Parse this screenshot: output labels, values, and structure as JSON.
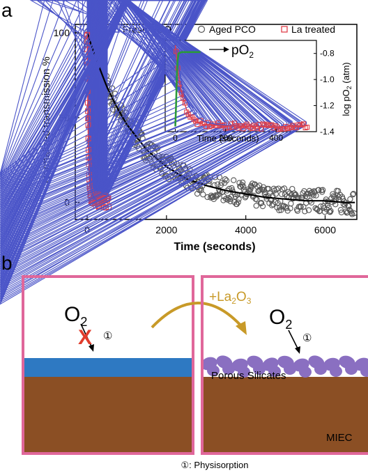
{
  "panel_a": {
    "label": "a",
    "chart_data": {
      "type": "scatter",
      "xlabel": "Time (seconds)",
      "ylabel": "Normalized transmission %",
      "xlim": [
        -300,
        6800
      ],
      "ylim": [
        -10,
        105
      ],
      "xticks": [
        0,
        2000,
        4000,
        6000
      ],
      "yticks": [
        0,
        50,
        100
      ],
      "xtick_labels": [
        "0",
        "2000",
        "4000",
        "6000"
      ],
      "ytick_labels": [
        "0",
        "50",
        "100"
      ],
      "legend_position": "top",
      "series": [
        {
          "name": "Fresh PCO",
          "marker": "triangle",
          "color": "#4a54c8",
          "tau": 40,
          "tmax": 520,
          "points": [
            [
              0,
              100
            ],
            [
              10,
              82
            ],
            [
              20,
              62
            ],
            [
              30,
              47
            ],
            [
              40,
              36
            ],
            [
              55,
              26
            ],
            [
              70,
              18
            ],
            [
              90,
              11
            ],
            [
              120,
              6
            ],
            [
              160,
              3
            ],
            [
              200,
              2
            ],
            [
              260,
              1
            ],
            [
              320,
              1
            ],
            [
              400,
              0
            ],
            [
              480,
              1
            ]
          ]
        },
        {
          "name": "Aged PCO",
          "marker": "circle",
          "color": "#555555",
          "tau": 1300,
          "tmax": 6750,
          "points": [
            [
              0,
              100
            ],
            [
              100,
              93
            ],
            [
              250,
              83
            ],
            [
              500,
              68
            ],
            [
              750,
              56
            ],
            [
              1000,
              46
            ],
            [
              1500,
              31
            ],
            [
              2000,
              21
            ],
            [
              2500,
              14
            ],
            [
              3000,
              10
            ],
            [
              3500,
              7
            ],
            [
              4000,
              5
            ],
            [
              4500,
              3
            ],
            [
              5000,
              2
            ],
            [
              5500,
              1
            ],
            [
              6000,
              1
            ],
            [
              6500,
              0
            ]
          ]
        },
        {
          "name": "La treated",
          "marker": "square",
          "color": "#e0404a",
          "tau": 28,
          "tmax": 560,
          "points": [
            [
              0,
              100
            ],
            [
              10,
              70
            ],
            [
              20,
              50
            ],
            [
              30,
              35
            ],
            [
              45,
              21
            ],
            [
              60,
              12
            ],
            [
              80,
              6
            ],
            [
              110,
              3
            ],
            [
              150,
              2
            ],
            [
              200,
              1
            ],
            [
              300,
              1
            ],
            [
              400,
              0
            ],
            [
              500,
              1
            ]
          ]
        }
      ],
      "fit_color": "#000000",
      "inset": {
        "xlabel": "Time (seconds)",
        "ylabel_right": "log pO2 (atm)",
        "xlim": [
          -40,
          560
        ],
        "ylim_left": [
          -6,
          106
        ],
        "y2lim": [
          -1.4,
          -0.7
        ],
        "xticks": [
          0,
          200,
          400
        ],
        "xtick_labels": [
          "0",
          "200",
          "400"
        ],
        "y2ticks": [
          -0.8,
          -1.0,
          -1.2,
          -1.4
        ],
        "y2tick_labels": [
          "-0.8",
          "-1.0",
          "-1.2",
          "-1.4"
        ],
        "annotation": "pO",
        "annotation_sub": "2",
        "po2_color": "#2a9a3a",
        "po2_trace": [
          [
            0,
            -1.36
          ],
          [
            3,
            -1.2
          ],
          [
            6,
            -1.0
          ],
          [
            9,
            -0.86
          ],
          [
            13,
            -0.8
          ],
          [
            25,
            -0.79
          ],
          [
            50,
            -0.79
          ],
          [
            80,
            -0.79
          ],
          [
            100,
            -0.79
          ]
        ]
      }
    }
  },
  "panel_b": {
    "label": "b",
    "left": {
      "molecule": "O",
      "molecule_sub": "2",
      "blocked_mark": "X",
      "step_mark": "①"
    },
    "arrow_label_prefix": "+La",
    "arrow_label_sub1": "2",
    "arrow_label_mid": "O",
    "arrow_label_sub2": "3",
    "right": {
      "molecule": "O",
      "molecule_sub": "2",
      "step_mark": "①",
      "layer_label": "Porous Silicates",
      "bulk_label": "MIEC"
    },
    "footnote": "①: Physisorption",
    "colors": {
      "frame": "#e0679a",
      "layer_blue": "#2e79c2",
      "bulk_brown": "#8b4f24",
      "silicate": "#8a6fc1",
      "arrow_gold": "#c89a28",
      "cross_red": "#e03c2c"
    }
  }
}
